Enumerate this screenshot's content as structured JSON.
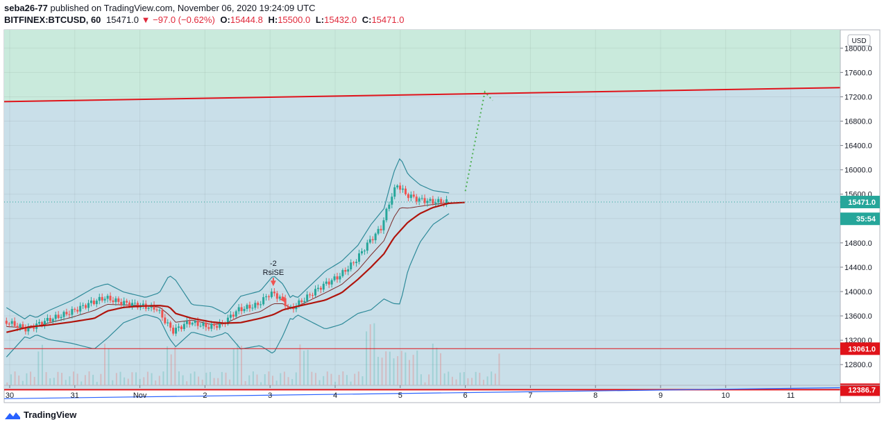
{
  "header": {
    "author": "seba26-77",
    "published_text": "published on TradingView.com, November 06, 2020 19:24:09 UTC",
    "symbol": "BITFINEX:BTCUSD, 60",
    "last": "15471.0",
    "change": "−97.0 (−0.62%)",
    "o_label": "O:",
    "o_value": "15444.8",
    "h_label": "H:",
    "h_value": "15500.0",
    "l_label": "L:",
    "l_value": "15432.0",
    "c_label": "C:",
    "c_value": "15471.0"
  },
  "footer": {
    "brand": "TradingView"
  },
  "colors": {
    "up": "#26a69a",
    "down": "#ef5350",
    "resistance": "#e0131a",
    "support": "#e0131a",
    "bands": "#2e8a99",
    "ma": "#b0140c",
    "zone_top": "#c9eadc",
    "zone_mid": "#c9dfe9",
    "zone_bottom": "#d4cdec"
  },
  "chart_data": {
    "type": "candlestick",
    "title": "",
    "currency_label": "USD",
    "y_ticks": [
      18000,
      17600,
      17200,
      16800,
      16400,
      16000,
      15600,
      15200,
      14800,
      14400,
      14000,
      13600,
      13200,
      12800
    ],
    "y_tick_labels": [
      "18000.0",
      "17600.0",
      "17200.0",
      "16800.0",
      "16400.0",
      "16000.0",
      "15600.0",
      "15200.0",
      "14800.0",
      "14400.0",
      "14000.0",
      "13600.0",
      "13200.0",
      "12800.0"
    ],
    "ylim": [
      12460,
      18300
    ],
    "x_ticks": [
      "30",
      "31",
      "Nov",
      "2",
      "3",
      "4",
      "5",
      "6",
      "7",
      "8",
      "9",
      "10",
      "11"
    ],
    "x_range_days": [
      -0.1,
      12.75
    ],
    "price_tags": [
      {
        "label": "15471.0",
        "value": 15471,
        "color": "#26a69a"
      },
      {
        "label": "35:54",
        "value": 15195,
        "color": "#26a69a"
      },
      {
        "label": "13061.0",
        "value": 13061,
        "color": "#e0131a"
      },
      {
        "label": "12386.7",
        "value": 12386.7,
        "color": "#e0131a"
      }
    ],
    "resistance_line": {
      "from_day": -0.1,
      "from_value": 17120,
      "to_day": 12.75,
      "to_value": 17350
    },
    "support_line": {
      "value": 13061
    },
    "support_line_2": {
      "value": 12386.7
    },
    "blue_trend": {
      "from_day": -0.1,
      "from_value": 12240,
      "to_day": 12.75,
      "to_value": 12420
    },
    "annotation": {
      "count": "-2",
      "text": "RsiSE",
      "day": 4.05,
      "value": 14020
    },
    "projection": {
      "from_day": 7.0,
      "from_value": 15650,
      "peak_day": 7.3,
      "peak_value": 17280,
      "end_day": 7.42,
      "end_value": 17140
    },
    "path_days": [
      -0.05,
      0.3,
      0.6,
      0.95,
      1.3,
      1.5,
      1.75,
      2.0,
      2.3,
      2.45,
      2.55,
      2.8,
      3.1,
      3.3,
      3.55,
      3.85,
      4.05,
      4.2,
      4.35,
      4.6,
      4.85,
      5.1,
      5.35,
      5.55,
      5.75,
      5.9,
      6.0,
      6.12,
      6.3,
      6.5,
      6.75
    ],
    "path_values": [
      13520,
      13380,
      13520,
      13650,
      13820,
      13900,
      13820,
      13780,
      13720,
      13480,
      13350,
      13500,
      13420,
      13460,
      13700,
      13780,
      13980,
      13900,
      13700,
      13900,
      14100,
      14250,
      14500,
      14800,
      15050,
      15550,
      15760,
      15600,
      15520,
      15480,
      15471
    ],
    "ma_values": [
      13330,
      13420,
      13450,
      13500,
      13560,
      13680,
      13740,
      13760,
      13770,
      13750,
      13640,
      13560,
      13500,
      13480,
      13490,
      13560,
      13620,
      13700,
      13740,
      13800,
      13860,
      13980,
      14200,
      14400,
      14620,
      14880,
      15000,
      15140,
      15280,
      15380,
      15450
    ],
    "volume_note": "volume bars"
  }
}
